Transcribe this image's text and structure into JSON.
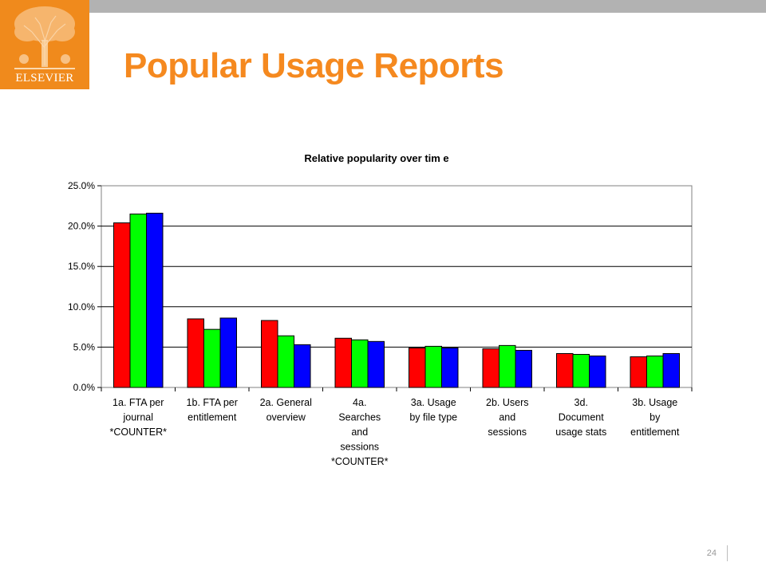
{
  "slide": {
    "title": "Popular Usage Reports",
    "logo_text": "ELSEVIER",
    "page_number": "24",
    "colors": {
      "accent": "#f5891f",
      "logo_bg": "#f08a1c",
      "top_bar": "#b2b2b2"
    }
  },
  "chart_data": {
    "type": "bar",
    "title": "Relative popularity over tim e",
    "xlabel": "",
    "ylabel": "",
    "ylim": [
      0,
      25
    ],
    "yticks": [
      "0.0%",
      "5.0%",
      "10.0%",
      "15.0%",
      "20.0%",
      "25.0%"
    ],
    "grid": true,
    "legend": "none",
    "categories": [
      [
        "1a. FTA per",
        "journal",
        "*COUNTER*"
      ],
      [
        "1b. FTA per",
        "entitlement"
      ],
      [
        "2a. General",
        "overview"
      ],
      [
        "4a.",
        "Searches",
        "and",
        "sessions",
        "*COUNTER*"
      ],
      [
        "3a. Usage",
        "by file type"
      ],
      [
        "2b. Users",
        "and",
        "sessions"
      ],
      [
        "3d.",
        "Document",
        "usage stats"
      ],
      [
        "3b. Usage",
        "by",
        "entitlement"
      ]
    ],
    "series": [
      {
        "color": "#ff0000",
        "values": [
          20.4,
          8.5,
          8.3,
          6.1,
          4.9,
          4.8,
          4.2,
          3.8
        ]
      },
      {
        "color": "#00ff00",
        "values": [
          21.5,
          7.2,
          6.4,
          5.9,
          5.1,
          5.2,
          4.1,
          3.9
        ]
      },
      {
        "color": "#0000ff",
        "values": [
          21.6,
          8.6,
          5.3,
          5.7,
          4.9,
          4.6,
          3.9,
          4.2
        ]
      }
    ]
  }
}
